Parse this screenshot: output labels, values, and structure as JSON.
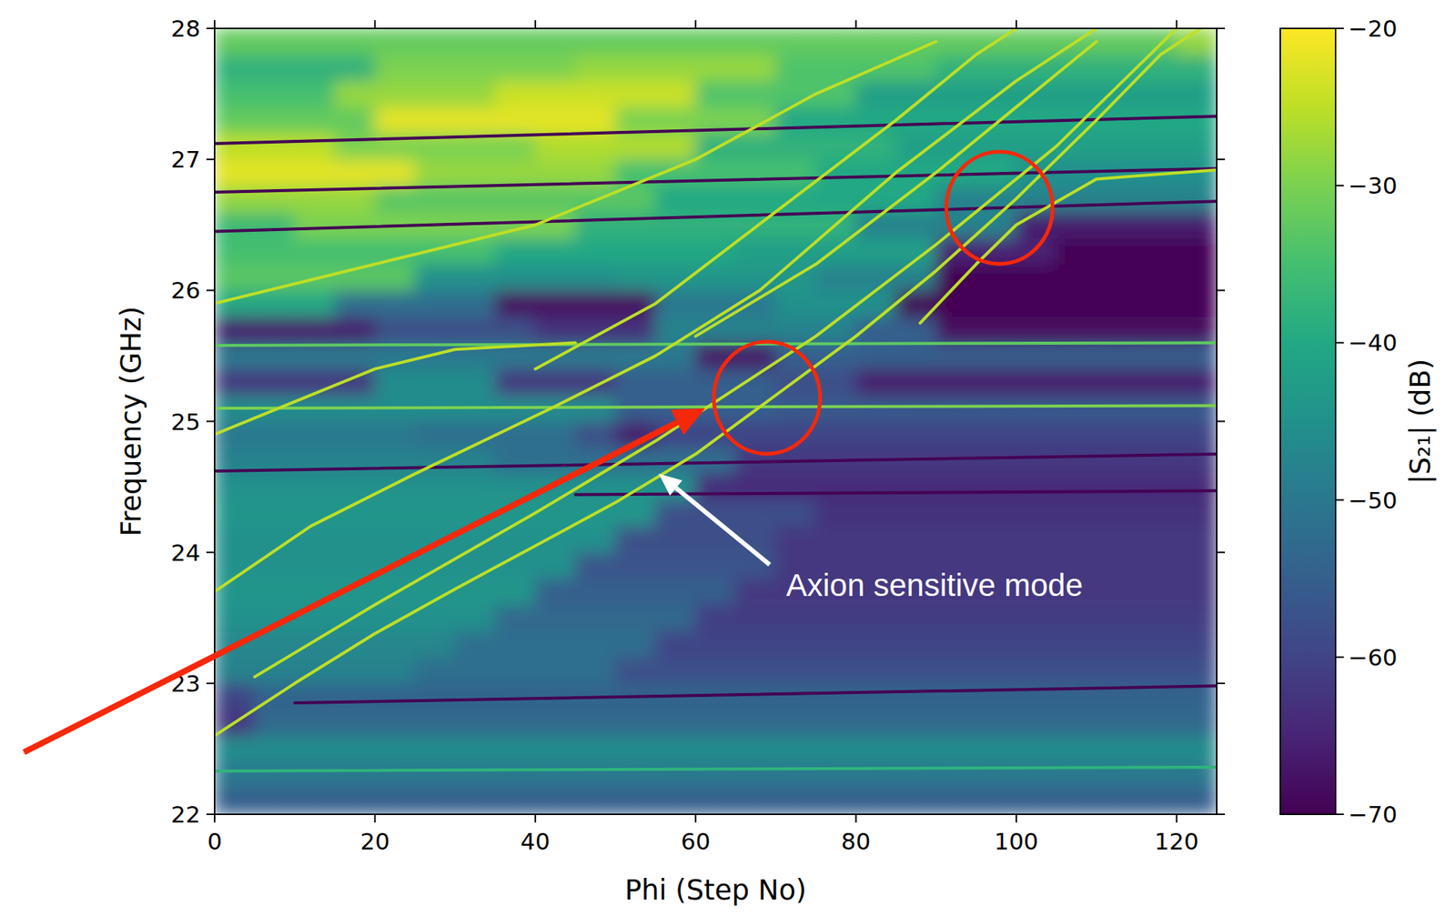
{
  "chart_data": {
    "type": "heatmap",
    "xlabel": "Phi (Step No)",
    "ylabel": "Frequency (GHz)",
    "xlim": [
      0,
      125
    ],
    "ylim": [
      22,
      28
    ],
    "xticks": [
      0,
      20,
      40,
      60,
      80,
      100,
      120
    ],
    "yticks": [
      22,
      23,
      24,
      25,
      26,
      27,
      28
    ],
    "x": [
      2.5,
      7.5,
      12.5,
      17.5,
      22.5,
      27.5,
      32.5,
      37.5,
      42.5,
      47.5,
      52.5,
      57.5,
      62.5,
      67.5,
      72.5,
      77.5,
      82.5,
      87.5,
      92.5,
      97.5,
      102.5,
      107.5,
      112.5,
      117.5,
      122.5
    ],
    "y": [
      22.1,
      22.3,
      22.5,
      22.7,
      22.9,
      23.1,
      23.3,
      23.5,
      23.7,
      23.9,
      24.1,
      24.3,
      24.5,
      24.7,
      24.9,
      25.1,
      25.3,
      25.5,
      25.7,
      25.9,
      26.1,
      26.3,
      26.5,
      26.7,
      26.9,
      27.1,
      27.3,
      27.5,
      27.7,
      27.9
    ],
    "cells": [
      [
        -55,
        -55,
        -55,
        -55,
        -55,
        -55,
        -55,
        -55,
        -55,
        -55,
        -55,
        -55,
        -55,
        -55,
        -55,
        -55,
        -55,
        -55,
        -55,
        -55,
        -55,
        -55,
        -55,
        -55,
        -55
      ],
      [
        -50,
        -50,
        -50,
        -50,
        -50,
        -50,
        -50,
        -50,
        -50,
        -50,
        -50,
        -50,
        -50,
        -50,
        -50,
        -50,
        -50,
        -50,
        -50,
        -50,
        -50,
        -50,
        -50,
        -50,
        -50
      ],
      [
        -46,
        -46,
        -46,
        -46,
        -46,
        -46,
        -46,
        -46,
        -46,
        -46,
        -46,
        -46,
        -46,
        -46,
        -46,
        -46,
        -46,
        -46,
        -46,
        -46,
        -46,
        -46,
        -46,
        -46,
        -46
      ],
      [
        -62,
        -53,
        -53,
        -53,
        -53,
        -53,
        -53,
        -53,
        -53,
        -53,
        -53,
        -53,
        -53,
        -53,
        -53,
        -53,
        -53,
        -53,
        -53,
        -53,
        -53,
        -53,
        -53,
        -53,
        -53
      ],
      [
        -60,
        -54,
        -54,
        -54,
        -54,
        -54,
        -54,
        -54,
        -54,
        -54,
        -54,
        -54,
        -54,
        -54,
        -54,
        -54,
        -54,
        -54,
        -54,
        -54,
        -54,
        -54,
        -54,
        -54,
        -54
      ],
      [
        -48,
        -48,
        -48,
        -48,
        -48,
        -52,
        -52,
        -52,
        -52,
        -52,
        -58,
        -58,
        -58,
        -58,
        -58,
        -58,
        -58,
        -58,
        -58,
        -58,
        -58,
        -58,
        -58,
        -58,
        -58
      ],
      [
        -47,
        -47,
        -47,
        -47,
        -47,
        -47,
        -52,
        -52,
        -52,
        -52,
        -52,
        -60,
        -60,
        -60,
        -60,
        -60,
        -60,
        -60,
        -60,
        -60,
        -60,
        -60,
        -60,
        -60,
        -60
      ],
      [
        -45,
        -45,
        -45,
        -45,
        -45,
        -45,
        -45,
        -53,
        -53,
        -53,
        -53,
        -53,
        -61,
        -61,
        -61,
        -61,
        -61,
        -61,
        -61,
        -61,
        -61,
        -61,
        -61,
        -61,
        -61
      ],
      [
        -44,
        -44,
        -44,
        -44,
        -44,
        -44,
        -44,
        -44,
        -55,
        -55,
        -55,
        -55,
        -55,
        -62,
        -62,
        -62,
        -62,
        -62,
        -62,
        -62,
        -62,
        -62,
        -62,
        -62,
        -62
      ],
      [
        -45,
        -45,
        -45,
        -45,
        -45,
        -45,
        -45,
        -45,
        -45,
        -57,
        -57,
        -57,
        -57,
        -57,
        -62,
        -62,
        -62,
        -62,
        -62,
        -62,
        -62,
        -62,
        -62,
        -62,
        -62
      ],
      [
        -45,
        -45,
        -45,
        -45,
        -45,
        -45,
        -45,
        -45,
        -45,
        -45,
        -58,
        -58,
        -58,
        -58,
        -62,
        -62,
        -62,
        -62,
        -62,
        -62,
        -62,
        -62,
        -62,
        -62,
        -62
      ],
      [
        -44,
        -44,
        -44,
        -44,
        -44,
        -44,
        -44,
        -44,
        -44,
        -44,
        -44,
        -58,
        -58,
        -58,
        -58,
        -63,
        -63,
        -63,
        -63,
        -63,
        -63,
        -63,
        -63,
        -63,
        -63
      ],
      [
        -45,
        -45,
        -45,
        -45,
        -45,
        -45,
        -45,
        -45,
        -45,
        -45,
        -45,
        -45,
        -64,
        -64,
        -64,
        -64,
        -64,
        -64,
        -64,
        -64,
        -64,
        -64,
        -64,
        -64,
        -64
      ],
      [
        -48,
        -48,
        -48,
        -48,
        -48,
        -48,
        -48,
        -52,
        -52,
        -52,
        -52,
        -52,
        -52,
        -62,
        -62,
        -62,
        -62,
        -62,
        -62,
        -62,
        -62,
        -62,
        -62,
        -62,
        -62
      ],
      [
        -50,
        -50,
        -50,
        -50,
        -50,
        -52,
        -52,
        -52,
        -52,
        -58,
        -66,
        -60,
        -60,
        -60,
        -60,
        -60,
        -60,
        -60,
        -60,
        -60,
        -60,
        -60,
        -60,
        -60,
        -60
      ],
      [
        -46,
        -46,
        -46,
        -46,
        -46,
        -46,
        -46,
        -46,
        -46,
        -46,
        -55,
        -55,
        -55,
        -55,
        -56,
        -56,
        -56,
        -56,
        -56,
        -56,
        -56,
        -56,
        -56,
        -56,
        -56
      ],
      [
        -62,
        -62,
        -62,
        -62,
        -46,
        -46,
        -46,
        -62,
        -62,
        -62,
        -55,
        -55,
        -55,
        -55,
        -58,
        -58,
        -66,
        -66,
        -66,
        -66,
        -66,
        -66,
        -66,
        -66,
        -66
      ],
      [
        -50,
        -50,
        -50,
        -50,
        -50,
        -50,
        -50,
        -50,
        -50,
        -50,
        -50,
        -50,
        -67,
        -67,
        -55,
        -55,
        -55,
        -55,
        -55,
        -55,
        -55,
        -55,
        -55,
        -55,
        -55
      ],
      [
        -66,
        -66,
        -66,
        -66,
        -58,
        -58,
        -58,
        -58,
        -63,
        -63,
        -63,
        -48,
        -48,
        -48,
        -48,
        -48,
        -55,
        -55,
        -68,
        -68,
        -68,
        -68,
        -68,
        -68,
        -68
      ],
      [
        -40,
        -40,
        -40,
        -52,
        -52,
        -52,
        -52,
        -68,
        -68,
        -68,
        -68,
        -50,
        -50,
        -50,
        -45,
        -45,
        -45,
        -70,
        -70,
        -70,
        -70,
        -70,
        -70,
        -70,
        -70
      ],
      [
        -33,
        -33,
        -33,
        -33,
        -33,
        -45,
        -45,
        -45,
        -45,
        -45,
        -44,
        -44,
        -44,
        -44,
        -44,
        -48,
        -48,
        -48,
        -70,
        -70,
        -70,
        -70,
        -70,
        -70,
        -70
      ],
      [
        -35,
        -35,
        -35,
        -35,
        -35,
        -35,
        -35,
        -40,
        -40,
        -40,
        -40,
        -40,
        -40,
        -42,
        -42,
        -42,
        -42,
        -42,
        -65,
        -65,
        -65,
        -70,
        -70,
        -70,
        -70
      ],
      [
        -36,
        -36,
        -30,
        -30,
        -30,
        -30,
        -30,
        -30,
        -30,
        -38,
        -38,
        -38,
        -38,
        -38,
        -38,
        -38,
        -48,
        -48,
        -48,
        -48,
        -66,
        -66,
        -66,
        -66,
        -66
      ],
      [
        -28,
        -28,
        -28,
        -28,
        -33,
        -33,
        -33,
        -33,
        -33,
        -33,
        -33,
        -40,
        -40,
        -40,
        -40,
        -40,
        -40,
        -40,
        -48,
        -48,
        -48,
        -48,
        -48,
        -48,
        -48
      ],
      [
        -22,
        -22,
        -22,
        -22,
        -22,
        -28,
        -28,
        -28,
        -28,
        -28,
        -35,
        -35,
        -35,
        -35,
        -35,
        -40,
        -40,
        -40,
        -40,
        -40,
        -45,
        -45,
        -45,
        -45,
        -45
      ],
      [
        -25,
        -25,
        -25,
        -30,
        -30,
        -30,
        -30,
        -30,
        -26,
        -26,
        -26,
        -26,
        -38,
        -38,
        -38,
        -38,
        -38,
        -42,
        -42,
        -42,
        -42,
        -42,
        -42,
        -42,
        -42
      ],
      [
        -32,
        -32,
        -32,
        -32,
        -22,
        -22,
        -22,
        -22,
        -22,
        -22,
        -30,
        -30,
        -30,
        -30,
        -40,
        -40,
        -40,
        -40,
        -40,
        -40,
        -40,
        -40,
        -40,
        -40,
        -40
      ],
      [
        -35,
        -35,
        -35,
        -28,
        -28,
        -28,
        -28,
        -24,
        -24,
        -24,
        -24,
        -24,
        -34,
        -34,
        -34,
        -34,
        -42,
        -42,
        -42,
        -42,
        -42,
        -42,
        -42,
        -42,
        -42
      ],
      [
        -38,
        -38,
        -38,
        -38,
        -30,
        -30,
        -30,
        -30,
        -30,
        -28,
        -28,
        -28,
        -28,
        -28,
        -34,
        -34,
        -34,
        -34,
        -38,
        -38,
        -38,
        -38,
        -38,
        -38,
        -38
      ],
      [
        -32,
        -32,
        -32,
        -32,
        -32,
        -32,
        -32,
        -32,
        -32,
        -32,
        -32,
        -32,
        -32,
        -32,
        -32,
        -32,
        -32,
        -32,
        -32,
        -32,
        -32,
        -32,
        -32,
        -32,
        -28
      ]
    ],
    "colorbar": {
      "label": "|S₂₁| (dB)",
      "lim": [
        -70,
        -20
      ],
      "ticks": [
        {
          "value": -20,
          "label": "−20"
        },
        {
          "value": -30,
          "label": "−30"
        },
        {
          "value": -40,
          "label": "−40"
        },
        {
          "value": -50,
          "label": "−50"
        },
        {
          "value": -60,
          "label": "−60"
        },
        {
          "value": -70,
          "label": "−70"
        }
      ]
    },
    "series": [
      {
        "type": "line",
        "color": "#7ad151",
        "x": [
          0,
          125
        ],
        "values": [
          25.1,
          25.12
        ]
      },
      {
        "type": "line",
        "color": "#5ec962",
        "x": [
          0,
          125
        ],
        "values": [
          25.58,
          25.6
        ]
      },
      {
        "type": "line",
        "color": "#2fb47c",
        "x": [
          0,
          125
        ],
        "values": [
          22.33,
          22.36
        ]
      },
      {
        "type": "line",
        "color": "#440154",
        "x": [
          45,
          125
        ],
        "values": [
          24.44,
          24.47
        ]
      },
      {
        "type": "line",
        "color": "#440154",
        "x": [
          0,
          125
        ],
        "values": [
          24.62,
          24.75
        ]
      },
      {
        "type": "line",
        "color": "#440154",
        "x": [
          10,
          125
        ],
        "values": [
          22.85,
          22.98
        ]
      },
      {
        "type": "line",
        "color": "#440154",
        "x": [
          0,
          125
        ],
        "values": [
          26.45,
          26.68
        ]
      },
      {
        "type": "line",
        "color": "#440154",
        "x": [
          0,
          125
        ],
        "values": [
          26.75,
          26.93
        ]
      },
      {
        "type": "line",
        "color": "#440154",
        "x": [
          0,
          125
        ],
        "values": [
          27.12,
          27.33
        ]
      },
      {
        "type": "line",
        "color": "#bddf26",
        "x": [
          0,
          10,
          20,
          30,
          40,
          50,
          60,
          70,
          80,
          90,
          100,
          110,
          118,
          123
        ],
        "values": [
          22.6,
          23.0,
          23.38,
          23.72,
          24.05,
          24.38,
          24.75,
          25.2,
          25.65,
          26.15,
          26.7,
          27.3,
          27.8,
          28.0
        ]
      },
      {
        "type": "line",
        "color": "#bddf26",
        "x": [
          5,
          20,
          40,
          55,
          65,
          75,
          90,
          105,
          115,
          120
        ],
        "values": [
          23.05,
          23.6,
          24.3,
          24.85,
          25.25,
          25.65,
          26.35,
          27.1,
          27.7,
          28.0
        ]
      },
      {
        "type": "line",
        "color": "#bddf26",
        "x": [
          0,
          12,
          25,
          42,
          55,
          68,
          85,
          100,
          110
        ],
        "values": [
          23.7,
          24.2,
          24.6,
          25.1,
          25.5,
          26.0,
          26.9,
          27.6,
          28.0
        ]
      },
      {
        "type": "line",
        "color": "#bddf26",
        "x": [
          0,
          10,
          20,
          30,
          45
        ],
        "values": [
          24.9,
          25.15,
          25.4,
          25.55,
          25.6
        ]
      },
      {
        "type": "line",
        "color": "#bddf26",
        "x": [
          40,
          55,
          70,
          85,
          95,
          100
        ],
        "values": [
          25.4,
          25.9,
          26.6,
          27.3,
          27.8,
          28.0
        ]
      },
      {
        "type": "line",
        "color": "#bddf26",
        "x": [
          60,
          75,
          90,
          100,
          110
        ],
        "values": [
          25.65,
          26.2,
          26.9,
          27.4,
          27.9
        ]
      },
      {
        "type": "line",
        "color": "#bddf26",
        "x": [
          88,
          95,
          100,
          110,
          125
        ],
        "values": [
          25.75,
          26.2,
          26.5,
          26.85,
          26.92
        ]
      },
      {
        "type": "line",
        "color": "#bddf26",
        "x": [
          0,
          20,
          40,
          60,
          75,
          90
        ],
        "values": [
          25.9,
          26.2,
          26.5,
          27.0,
          27.5,
          27.9
        ]
      }
    ],
    "annotations": [
      {
        "text": "Axion sensitive mode",
        "xy": [
          55.4,
          24.6
        ],
        "xytext": [
          89.8,
          23.75
        ]
      }
    ]
  }
}
